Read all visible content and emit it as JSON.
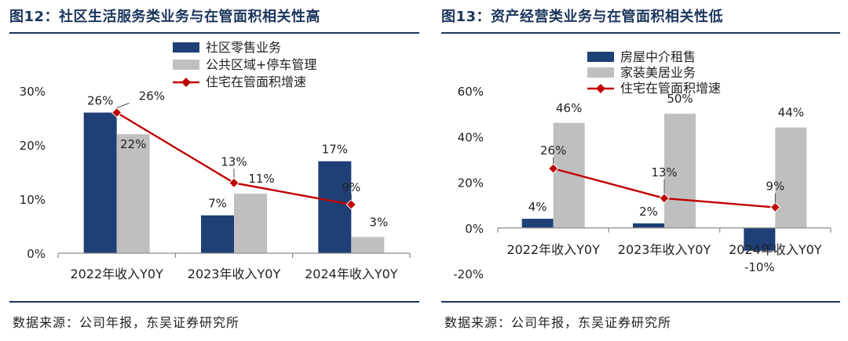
{
  "colors": {
    "navy": "#1f3f77",
    "gray": "#bfbfbf",
    "red": "#c00000",
    "title": "#1b365d"
  },
  "chart_data": [
    {
      "type": "bar",
      "figure_label": "图12：社区生活服务类业务与在管面积相关性高",
      "categories": [
        "2022年收入Y0Y",
        "2023年收入Y0Y",
        "2024年收入Y0Y"
      ],
      "series": [
        {
          "name": "社区零售业务",
          "kind": "bar",
          "color": "#1f3f77",
          "values": [
            26,
            7,
            17
          ],
          "labels": [
            "26%",
            "7%",
            "17%"
          ]
        },
        {
          "name": "公共区域+停车管理",
          "kind": "bar",
          "color": "#bfbfbf",
          "values": [
            22,
            11,
            3
          ],
          "labels": [
            "22%",
            "11%",
            "3%"
          ]
        },
        {
          "name": "住宅在管面积增速",
          "kind": "line",
          "color": "#c00000",
          "values": [
            26,
            13,
            9
          ],
          "labels": [
            "26%",
            "13%",
            "9%"
          ]
        }
      ],
      "yaxis": {
        "min": 0,
        "max": 30,
        "ticks": [
          0,
          10,
          20,
          30
        ],
        "tick_labels": [
          "0%",
          "10%",
          "20%",
          "30%"
        ]
      },
      "source": "数据来源：公司年报，东吴证券研究所"
    },
    {
      "type": "bar",
      "figure_label": "图13：资产经营类业务与在管面积相关性低",
      "categories": [
        "2022年收入Y0Y",
        "2023年收入Y0Y",
        "2024年收入Y0Y"
      ],
      "series": [
        {
          "name": "房屋中介租售",
          "kind": "bar",
          "color": "#1f3f77",
          "values": [
            4,
            2,
            -10
          ],
          "labels": [
            "4%",
            "2%",
            "-10%"
          ]
        },
        {
          "name": "家装美居业务",
          "kind": "bar",
          "color": "#bfbfbf",
          "values": [
            46,
            50,
            44
          ],
          "labels": [
            "46%",
            "50%",
            "44%"
          ]
        },
        {
          "name": "住宅在管面积增速",
          "kind": "line",
          "color": "#c00000",
          "values": [
            26,
            13,
            9
          ],
          "labels": [
            "26%",
            "13%",
            "9%"
          ]
        }
      ],
      "yaxis": {
        "min": -20,
        "max": 60,
        "ticks": [
          -20,
          0,
          20,
          40,
          60
        ],
        "tick_labels": [
          "-20%",
          "0%",
          "20%",
          "40%",
          "60%"
        ]
      },
      "source": "数据来源：公司年报，东吴证券研究所"
    }
  ]
}
